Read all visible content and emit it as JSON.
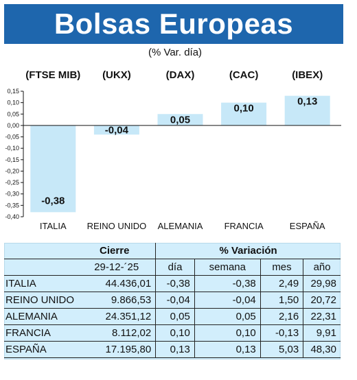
{
  "header": {
    "title": "Bolsas Europeas",
    "subtitle": "(% Var. día)"
  },
  "chart_data": {
    "type": "bar",
    "categories": [
      "ITALIA",
      "REINO UNIDO",
      "ALEMANIA",
      "FRANCIA",
      "ESPAÑA"
    ],
    "index_labels": [
      "(FTSE MIB)",
      "(UKX)",
      "(DAX)",
      "(CAC)",
      "(IBEX)"
    ],
    "values": [
      -0.38,
      -0.04,
      0.05,
      0.1,
      0.13
    ],
    "value_labels": [
      "-0,38",
      "-0,04",
      "0,05",
      "0,10",
      "0,13"
    ],
    "ylim": [
      -0.4,
      0.15
    ],
    "yticks": [
      0.15,
      0.1,
      0.05,
      0.0,
      -0.05,
      -0.1,
      -0.15,
      -0.2,
      -0.25,
      -0.3,
      -0.35,
      -0.4
    ],
    "ytick_labels": [
      "0,15",
      "0,10",
      "0,05",
      "0,00",
      "-0,05",
      "-0,10",
      "-0,15",
      "-0,20",
      "-0,25",
      "-0,30",
      "-0,35",
      "-0,40"
    ],
    "bar_color": "#c7e8f8",
    "grid": false
  },
  "table": {
    "header_close": "Cierre",
    "header_variation": "% Variación",
    "date": "29-12-´25",
    "cols": [
      "día",
      "semana",
      "mes",
      "año"
    ],
    "rows": [
      {
        "name": "ITALIA",
        "close": "44.436,01",
        "dia": "-0,38",
        "semana": "-0,38",
        "mes": "2,49",
        "ano": "29,98"
      },
      {
        "name": "REINO UNIDO",
        "close": "9.866,53",
        "dia": "-0,04",
        "semana": "-0,04",
        "mes": "1,50",
        "ano": "20,72"
      },
      {
        "name": "ALEMANIA",
        "close": "24.351,12",
        "dia": "0,05",
        "semana": "0,05",
        "mes": "2,16",
        "ano": "22,31"
      },
      {
        "name": "FRANCIA",
        "close": "8.112,02",
        "dia": "0,10",
        "semana": "0,10",
        "mes": "-0,13",
        "ano": "9,91"
      },
      {
        "name": "ESPAÑA",
        "close": "17.195,80",
        "dia": "0,13",
        "semana": "0,13",
        "mes": "5,03",
        "ano": "48,30"
      }
    ]
  },
  "colors": {
    "banner": "#1e66ad",
    "table_bg": "#d2eefc"
  }
}
